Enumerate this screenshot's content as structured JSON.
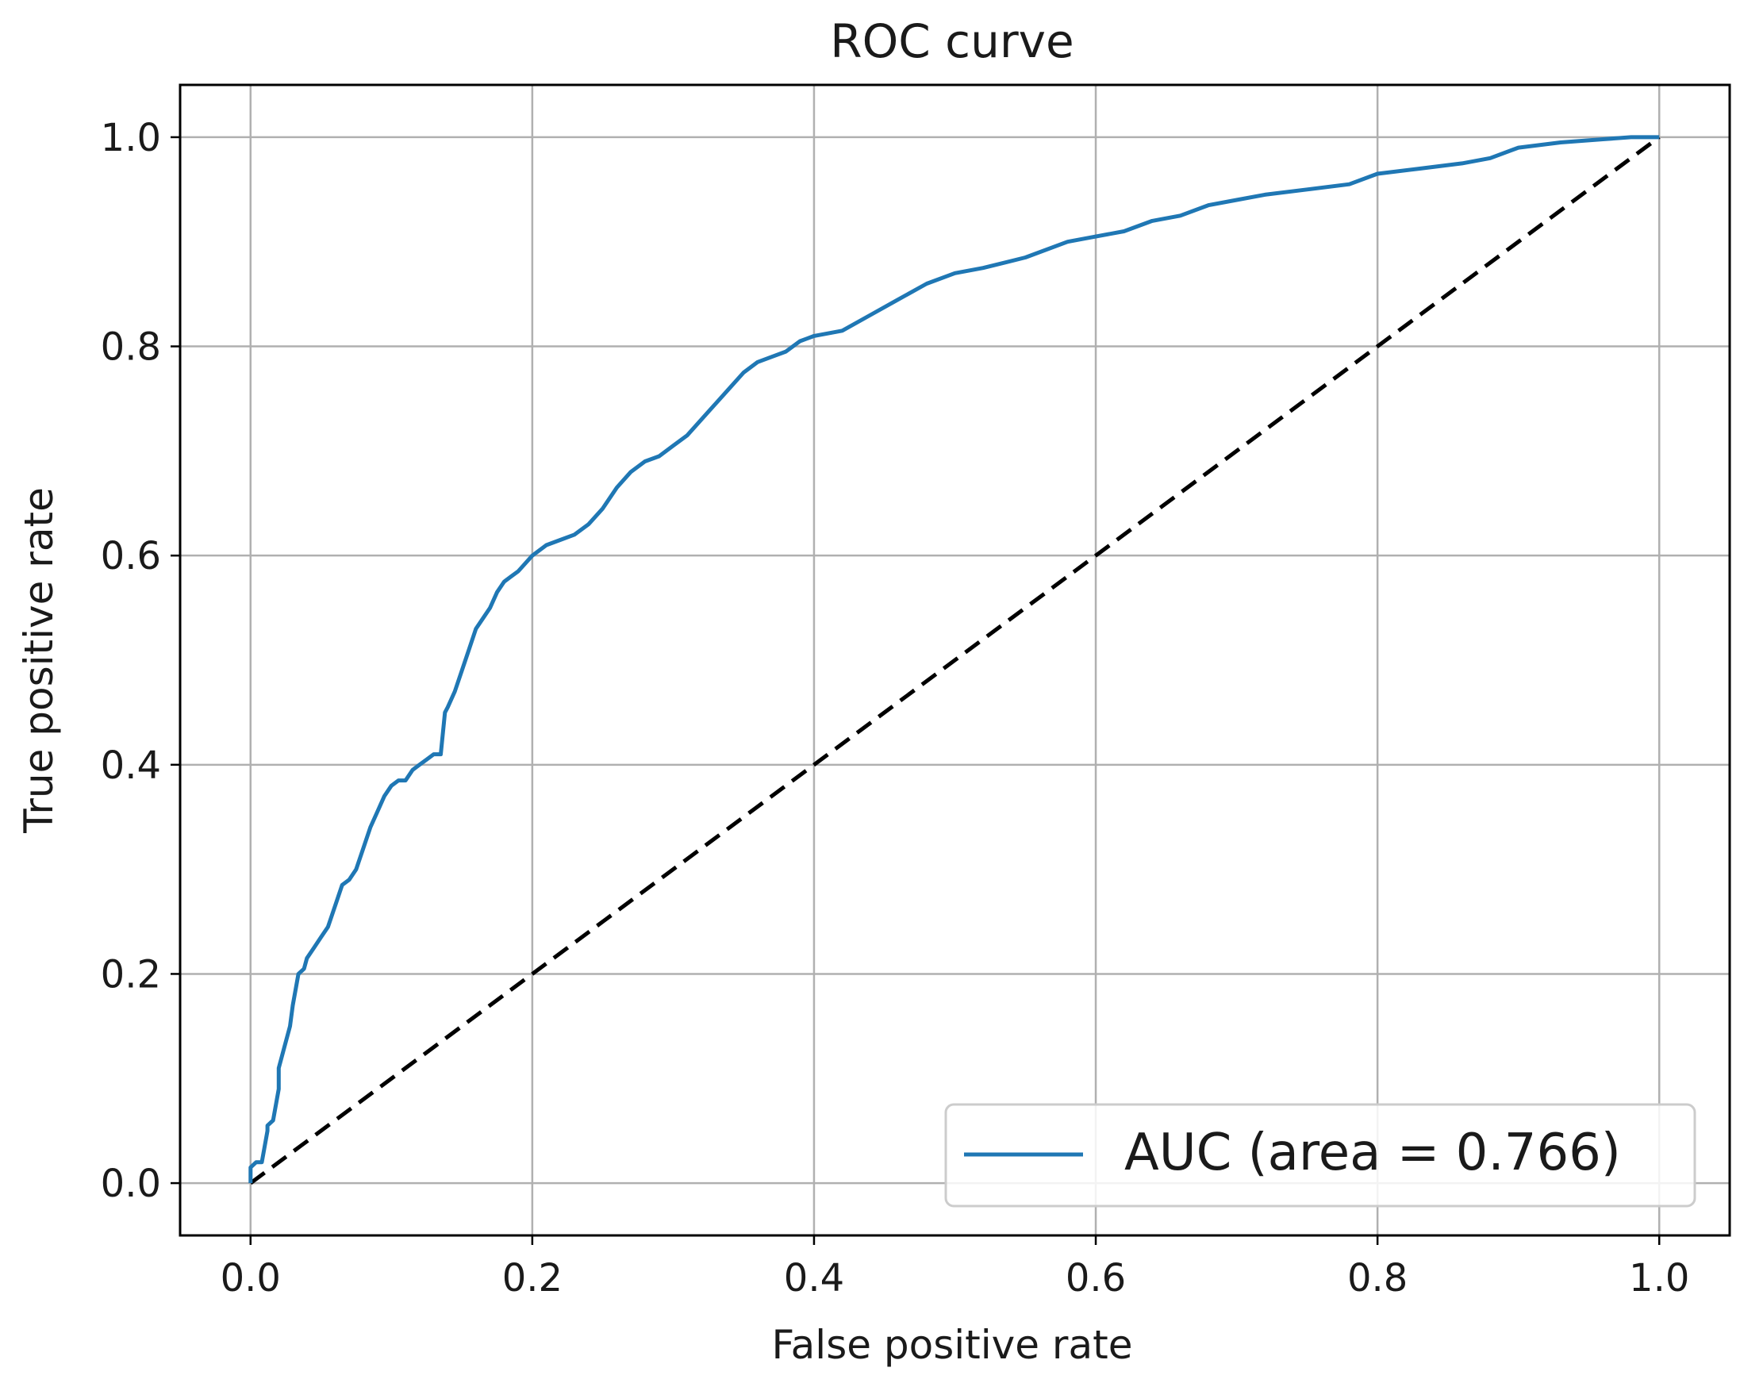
{
  "chart_data": {
    "type": "line",
    "title": "ROC curve",
    "xlabel": "False positive rate",
    "ylabel": "True positive rate",
    "xlim": [
      -0.05,
      1.05
    ],
    "ylim": [
      -0.05,
      1.05
    ],
    "xticks": [
      0.0,
      0.2,
      0.4,
      0.6,
      0.8,
      1.0
    ],
    "yticks": [
      0.0,
      0.2,
      0.4,
      0.6,
      0.8,
      1.0
    ],
    "tick_labels_x": [
      "0.0",
      "0.2",
      "0.4",
      "0.6",
      "0.8",
      "1.0"
    ],
    "tick_labels_y": [
      "0.0",
      "0.2",
      "0.4",
      "0.6",
      "0.8",
      "1.0"
    ],
    "grid": true,
    "legend_position": "bottom-right",
    "series": [
      {
        "name": "AUC (area = 0.766)",
        "color": "#1f77b4",
        "style": "solid",
        "x": [
          0.0,
          0.0,
          0.004,
          0.008,
          0.012,
          0.012,
          0.016,
          0.02,
          0.02,
          0.024,
          0.028,
          0.03,
          0.034,
          0.038,
          0.04,
          0.045,
          0.05,
          0.055,
          0.06,
          0.065,
          0.07,
          0.075,
          0.08,
          0.085,
          0.09,
          0.095,
          0.1,
          0.105,
          0.11,
          0.115,
          0.12,
          0.125,
          0.13,
          0.135,
          0.138,
          0.14,
          0.145,
          0.15,
          0.155,
          0.16,
          0.165,
          0.17,
          0.175,
          0.18,
          0.185,
          0.19,
          0.2,
          0.21,
          0.22,
          0.23,
          0.24,
          0.25,
          0.26,
          0.27,
          0.28,
          0.29,
          0.3,
          0.31,
          0.32,
          0.33,
          0.34,
          0.35,
          0.36,
          0.37,
          0.38,
          0.39,
          0.4,
          0.42,
          0.44,
          0.46,
          0.48,
          0.5,
          0.52,
          0.55,
          0.58,
          0.6,
          0.62,
          0.64,
          0.66,
          0.68,
          0.7,
          0.72,
          0.75,
          0.78,
          0.8,
          0.83,
          0.86,
          0.88,
          0.9,
          0.93,
          0.96,
          0.98,
          1.0
        ],
        "y": [
          0.0,
          0.015,
          0.02,
          0.02,
          0.05,
          0.055,
          0.06,
          0.09,
          0.11,
          0.13,
          0.15,
          0.17,
          0.2,
          0.205,
          0.215,
          0.225,
          0.235,
          0.245,
          0.265,
          0.285,
          0.29,
          0.3,
          0.32,
          0.34,
          0.355,
          0.37,
          0.38,
          0.385,
          0.385,
          0.395,
          0.4,
          0.405,
          0.41,
          0.41,
          0.45,
          0.455,
          0.47,
          0.49,
          0.51,
          0.53,
          0.54,
          0.55,
          0.565,
          0.575,
          0.58,
          0.585,
          0.6,
          0.61,
          0.615,
          0.62,
          0.63,
          0.645,
          0.665,
          0.68,
          0.69,
          0.695,
          0.705,
          0.715,
          0.73,
          0.745,
          0.76,
          0.775,
          0.785,
          0.79,
          0.795,
          0.805,
          0.81,
          0.815,
          0.83,
          0.845,
          0.86,
          0.87,
          0.875,
          0.885,
          0.9,
          0.905,
          0.91,
          0.92,
          0.925,
          0.935,
          0.94,
          0.945,
          0.95,
          0.955,
          0.965,
          0.97,
          0.975,
          0.98,
          0.99,
          0.995,
          0.998,
          1.0,
          1.0
        ]
      },
      {
        "name": "",
        "color": "#000000",
        "style": "dashed",
        "x": [
          0.0,
          1.0
        ],
        "y": [
          0.0,
          1.0
        ]
      }
    ]
  }
}
